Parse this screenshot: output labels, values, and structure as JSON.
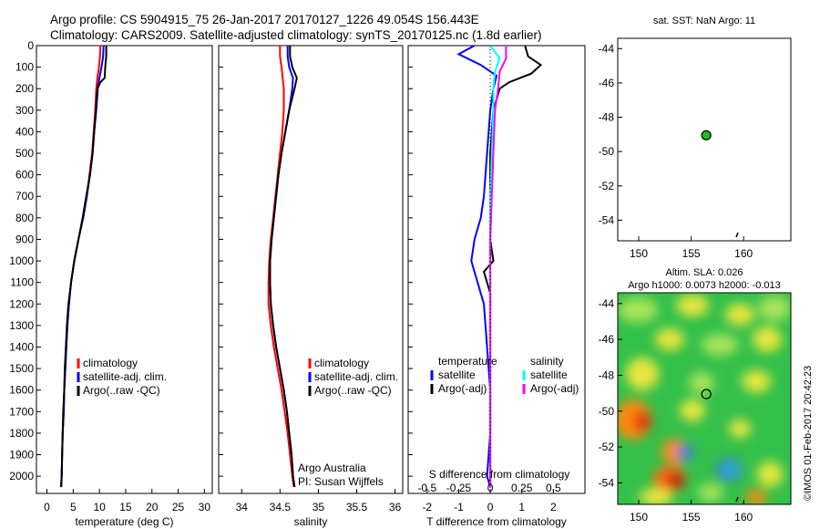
{
  "header": {
    "line1": "Argo profile: CS 5904915_75 26-Jan-2017 20170127_1226 49.054S 156.443E",
    "line2": "Climatology: CARS2009. Satellite-adjusted climatology: synTS_20170125.nc (1.8d earlier)"
  },
  "side_credit": "©IMOS 01-Feb-2017 20:42:23",
  "colors": {
    "climatology": "#ff0000",
    "satellite": "#0000ff",
    "argo": "#000000",
    "sal_satellite": "#00ffff",
    "sal_argo": "#ff00ff",
    "marker": "#22bb22"
  },
  "chart_data": [
    {
      "type": "line",
      "xlabel": "temperature (deg C)",
      "xticks": [
        0,
        5,
        10,
        15,
        20,
        25,
        30
      ],
      "xlim": [
        -2,
        31.5
      ],
      "ylim": [
        2080,
        0
      ],
      "yticks": [
        0,
        100,
        200,
        300,
        400,
        500,
        600,
        700,
        800,
        900,
        1000,
        1100,
        1200,
        1300,
        1400,
        1500,
        1600,
        1700,
        1800,
        1900,
        2000
      ],
      "legend": [
        "climatology",
        "satellite-adj. clim.",
        "Argo(..raw -QC)"
      ],
      "series": [
        {
          "name": "climatology",
          "points": [
            [
              10.2,
              0
            ],
            [
              10.1,
              50
            ],
            [
              9.9,
              100
            ],
            [
              9.6,
              150
            ],
            [
              9.4,
              200
            ],
            [
              9.2,
              300
            ],
            [
              8.9,
              400
            ],
            [
              8.6,
              500
            ],
            [
              8.1,
              600
            ],
            [
              7.6,
              700
            ],
            [
              6.9,
              800
            ],
            [
              6.0,
              900
            ],
            [
              5.2,
              1000
            ],
            [
              4.6,
              1100
            ],
            [
              4.2,
              1200
            ],
            [
              3.9,
              1300
            ],
            [
              3.7,
              1400
            ],
            [
              3.5,
              1500
            ],
            [
              3.3,
              1600
            ],
            [
              3.2,
              1700
            ],
            [
              3.0,
              1800
            ],
            [
              2.9,
              1900
            ],
            [
              2.8,
              2000
            ],
            [
              2.7,
              2050
            ]
          ]
        },
        {
          "name": "satellite-adj. clim.",
          "points": [
            [
              10.8,
              0
            ],
            [
              10.7,
              50
            ],
            [
              10.4,
              100
            ],
            [
              10.0,
              150
            ],
            [
              9.7,
              200
            ],
            [
              9.4,
              300
            ],
            [
              9.0,
              400
            ],
            [
              8.7,
              500
            ],
            [
              8.2,
              600
            ],
            [
              7.6,
              700
            ],
            [
              6.9,
              800
            ],
            [
              6.0,
              900
            ],
            [
              5.2,
              1000
            ],
            [
              4.6,
              1100
            ],
            [
              4.2,
              1200
            ],
            [
              3.9,
              1300
            ],
            [
              3.7,
              1400
            ],
            [
              3.5,
              1500
            ],
            [
              3.3,
              1600
            ],
            [
              3.2,
              1700
            ],
            [
              3.0,
              1800
            ],
            [
              2.9,
              1900
            ],
            [
              2.8,
              2000
            ],
            [
              2.7,
              2050
            ]
          ]
        },
        {
          "name": "Argo(..raw -QC)",
          "points": [
            [
              11.3,
              0
            ],
            [
              11.3,
              50
            ],
            [
              11.1,
              100
            ],
            [
              11.0,
              150
            ],
            [
              10.2,
              170
            ],
            [
              9.6,
              200
            ],
            [
              9.3,
              300
            ],
            [
              9.0,
              400
            ],
            [
              8.7,
              500
            ],
            [
              8.2,
              600
            ],
            [
              7.5,
              700
            ],
            [
              6.8,
              800
            ],
            [
              6.0,
              900
            ],
            [
              5.2,
              1000
            ],
            [
              4.6,
              1100
            ],
            [
              4.1,
              1200
            ],
            [
              3.8,
              1300
            ],
            [
              3.6,
              1400
            ],
            [
              3.4,
              1500
            ],
            [
              3.3,
              1600
            ],
            [
              3.1,
              1700
            ],
            [
              3.0,
              1800
            ],
            [
              2.9,
              1900
            ],
            [
              2.8,
              2000
            ],
            [
              2.7,
              2050
            ]
          ]
        }
      ]
    },
    {
      "type": "line",
      "xlabel": "salinity",
      "xticks": [
        34,
        34.5,
        35,
        35.5,
        36
      ],
      "xlim": [
        33.7,
        36.1
      ],
      "ylim": [
        2080,
        0
      ],
      "legend": [
        "climatology",
        "satellite-adj. clim.",
        "Argo(..raw -QC)"
      ],
      "annotation": [
        "Argo Australia",
        "PI: Susan Wijffels"
      ],
      "series": [
        {
          "name": "climatology",
          "points": [
            [
              34.5,
              0
            ],
            [
              34.5,
              50
            ],
            [
              34.52,
              100
            ],
            [
              34.55,
              200
            ],
            [
              34.55,
              300
            ],
            [
              34.53,
              400
            ],
            [
              34.5,
              500
            ],
            [
              34.47,
              600
            ],
            [
              34.44,
              700
            ],
            [
              34.41,
              800
            ],
            [
              34.38,
              900
            ],
            [
              34.36,
              1000
            ],
            [
              34.35,
              1100
            ],
            [
              34.35,
              1200
            ],
            [
              34.38,
              1300
            ],
            [
              34.42,
              1400
            ],
            [
              34.47,
              1500
            ],
            [
              34.52,
              1600
            ],
            [
              34.56,
              1700
            ],
            [
              34.6,
              1800
            ],
            [
              34.63,
              1900
            ],
            [
              34.66,
              2000
            ],
            [
              34.68,
              2050
            ]
          ]
        },
        {
          "name": "satellite-adj. clim.",
          "points": [
            [
              34.6,
              0
            ],
            [
              34.6,
              50
            ],
            [
              34.62,
              100
            ],
            [
              34.67,
              150
            ],
            [
              34.66,
              200
            ],
            [
              34.62,
              300
            ],
            [
              34.57,
              400
            ],
            [
              34.52,
              500
            ],
            [
              34.48,
              600
            ],
            [
              34.45,
              700
            ],
            [
              34.42,
              800
            ],
            [
              34.39,
              900
            ],
            [
              34.37,
              1000
            ],
            [
              34.37,
              1100
            ],
            [
              34.38,
              1200
            ],
            [
              34.41,
              1300
            ],
            [
              34.45,
              1400
            ],
            [
              34.5,
              1500
            ],
            [
              34.55,
              1600
            ],
            [
              34.59,
              1700
            ],
            [
              34.62,
              1800
            ],
            [
              34.65,
              1900
            ],
            [
              34.67,
              2000
            ],
            [
              34.69,
              2050
            ]
          ]
        },
        {
          "name": "Argo(..raw -QC)",
          "points": [
            [
              34.63,
              0
            ],
            [
              34.63,
              50
            ],
            [
              34.66,
              100
            ],
            [
              34.72,
              150
            ],
            [
              34.69,
              200
            ],
            [
              34.62,
              300
            ],
            [
              34.57,
              400
            ],
            [
              34.52,
              500
            ],
            [
              34.48,
              600
            ],
            [
              34.45,
              700
            ],
            [
              34.42,
              800
            ],
            [
              34.39,
              900
            ],
            [
              34.37,
              1000
            ],
            [
              34.37,
              1100
            ],
            [
              34.38,
              1200
            ],
            [
              34.41,
              1300
            ],
            [
              34.45,
              1400
            ],
            [
              34.5,
              1500
            ],
            [
              34.55,
              1600
            ],
            [
              34.59,
              1700
            ],
            [
              34.62,
              1800
            ],
            [
              34.65,
              1900
            ],
            [
              34.67,
              2000
            ],
            [
              34.69,
              2050
            ]
          ]
        }
      ]
    },
    {
      "type": "line",
      "xlabel": "T difference from climatology",
      "xticks": [
        -2,
        -1,
        0,
        1,
        2
      ],
      "xlim": [
        -2.6,
        3
      ],
      "top_label": "S difference from climatology",
      "top_ticks": [
        -0.5,
        -0.25,
        0,
        0.25,
        0.5
      ],
      "ylim": [
        2080,
        0
      ],
      "legend_left": [
        "temperature",
        "satellite",
        "Argo(-adj)"
      ],
      "legend_right": [
        "salinity",
        "satellite",
        "Argo(-adj)"
      ],
      "series": [
        {
          "name": "temperature satellite",
          "points": [
            [
              -0.5,
              0
            ],
            [
              -1.0,
              40
            ],
            [
              -0.3,
              90
            ],
            [
              0.2,
              140
            ],
            [
              0.1,
              200
            ],
            [
              0.0,
              300
            ],
            [
              -0.1,
              500
            ],
            [
              -0.2,
              700
            ],
            [
              -0.3,
              800
            ],
            [
              -0.5,
              900
            ],
            [
              -0.6,
              1000
            ],
            [
              -0.4,
              1100
            ],
            [
              -0.2,
              1200
            ],
            [
              -0.1,
              1400
            ],
            [
              0.0,
              1600
            ],
            [
              0.0,
              1800
            ],
            [
              -0.1,
              2000
            ],
            [
              0.0,
              2050
            ]
          ]
        },
        {
          "name": "temperature Argo(-adj)",
          "points": [
            [
              1.1,
              0
            ],
            [
              1.2,
              50
            ],
            [
              1.6,
              90
            ],
            [
              1.3,
              130
            ],
            [
              0.6,
              170
            ],
            [
              0.3,
              200
            ],
            [
              0.1,
              300
            ],
            [
              0.0,
              500
            ],
            [
              0.0,
              700
            ],
            [
              0.0,
              900
            ],
            [
              0.1,
              1000
            ],
            [
              -0.2,
              1050
            ],
            [
              0.0,
              1150
            ],
            [
              0.0,
              1300
            ],
            [
              0.0,
              1500
            ],
            [
              0.0,
              1700
            ],
            [
              0.0,
              1900
            ],
            [
              0.0,
              2050
            ]
          ]
        },
        {
          "name": "salinity satellite",
          "points": [
            [
              0.0,
              0
            ],
            [
              0.3,
              60
            ],
            [
              0.15,
              120
            ],
            [
              0.1,
              200
            ],
            [
              0.1,
              300
            ],
            [
              0.05,
              500
            ],
            [
              0.0,
              700
            ],
            [
              0.0,
              900
            ],
            [
              0.0,
              1100
            ],
            [
              0.0,
              1300
            ],
            [
              0.0,
              1500
            ],
            [
              0.0,
              1700
            ],
            [
              0.0,
              1900
            ],
            [
              0.0,
              2050
            ]
          ]
        },
        {
          "name": "salinity Argo(-adj)",
          "points": [
            [
              0.5,
              0
            ],
            [
              0.5,
              60
            ],
            [
              0.3,
              120
            ],
            [
              0.25,
              200
            ],
            [
              0.15,
              300
            ],
            [
              0.1,
              500
            ],
            [
              0.05,
              700
            ],
            [
              0.0,
              900
            ],
            [
              0.0,
              1100
            ],
            [
              0.0,
              1300
            ],
            [
              0.0,
              1500
            ],
            [
              0.0,
              1700
            ],
            [
              0.0,
              1900
            ],
            [
              0.0,
              2050
            ]
          ]
        }
      ]
    },
    {
      "type": "scatter",
      "title": "sat. SST: NaN Argo: 11",
      "xticks": [
        150,
        155,
        160
      ],
      "yticks": [
        -44,
        -46,
        -48,
        -50,
        -52,
        -54
      ],
      "xlim": [
        148,
        164.5
      ],
      "ylim": [
        -55.2,
        -43.4
      ],
      "points": [
        {
          "x": 156.44,
          "y": -49.05
        }
      ]
    },
    {
      "type": "heatmap",
      "title": [
        "Altim. SLA: 0.026",
        "Argo h1000: 0.0073 h2000: -0.013"
      ],
      "xticks": [
        150,
        155,
        160
      ],
      "yticks": [
        -44,
        -46,
        -48,
        -50,
        -52,
        -54
      ],
      "xlim": [
        148,
        164.5
      ],
      "ylim": [
        -55.2,
        -43.4
      ],
      "points": [
        {
          "x": 156.44,
          "y": -49.05
        }
      ]
    }
  ]
}
